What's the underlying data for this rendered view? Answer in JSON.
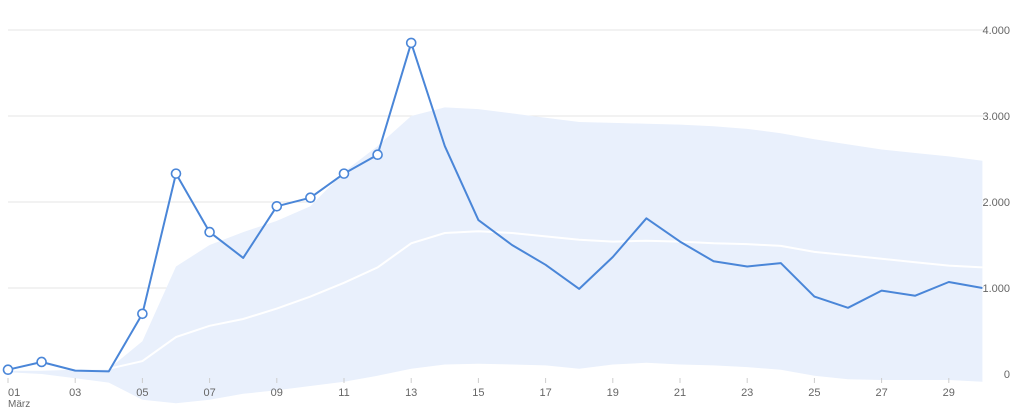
{
  "chart_data": {
    "type": "line",
    "x": [
      "01",
      "02",
      "03",
      "04",
      "05",
      "06",
      "07",
      "08",
      "09",
      "10",
      "11",
      "12",
      "13",
      "14",
      "15",
      "16",
      "17",
      "18",
      "19",
      "20",
      "21",
      "22",
      "23",
      "24",
      "25",
      "26",
      "27",
      "28",
      "29",
      "30"
    ],
    "x_tick_labels": [
      "01",
      "03",
      "05",
      "07",
      "09",
      "11",
      "13",
      "15",
      "17",
      "19",
      "21",
      "23",
      "25",
      "27",
      "29"
    ],
    "x_sublabel": "März",
    "y_tick_labels": [
      "0",
      "1.000",
      "2.000",
      "3.000",
      "4.000"
    ],
    "y_ticks": [
      0,
      1000,
      2000,
      3000,
      4000
    ],
    "ylim": [
      0,
      4000
    ],
    "grid": true,
    "y_axis_side": "right",
    "series": [
      {
        "values": [
          50,
          140,
          40,
          30,
          700,
          2330,
          1650,
          1350,
          1950,
          2050,
          2330,
          2550,
          3850,
          2650,
          1790,
          1500,
          1270,
          990,
          1360,
          1810,
          1540,
          1310,
          1250,
          1290,
          900,
          770,
          970,
          910,
          1070,
          1000
        ],
        "markers_on": [
          "01",
          "02",
          "05",
          "06",
          "07",
          "09",
          "10",
          "11",
          "12",
          "13"
        ]
      }
    ],
    "expected_line": [
      50,
      50,
      60,
      60,
      150,
      430,
      560,
      640,
      760,
      900,
      1060,
      1240,
      1520,
      1640,
      1660,
      1640,
      1600,
      1560,
      1540,
      1550,
      1540,
      1520,
      1510,
      1490,
      1420,
      1380,
      1340,
      1300,
      1260,
      1240
    ],
    "band_upper": [
      50,
      50,
      60,
      60,
      380,
      1250,
      1500,
      1650,
      1780,
      1950,
      2350,
      2650,
      3000,
      3100,
      3080,
      3030,
      2980,
      2930,
      2920,
      2910,
      2900,
      2880,
      2850,
      2800,
      2730,
      2670,
      2610,
      2570,
      2530,
      2480
    ],
    "band_lower": [
      20,
      0,
      -50,
      -100,
      -300,
      -340,
      -300,
      -230,
      -190,
      -140,
      -90,
      -20,
      60,
      110,
      120,
      110,
      100,
      60,
      110,
      130,
      110,
      100,
      80,
      50,
      -20,
      -60,
      -70,
      -70,
      -70,
      -90
    ],
    "colors": {
      "line": "#4a86d8",
      "band": "#e9f0fc",
      "expected": "#ffffff",
      "grid": "#e6e6e6",
      "marker_fill": "#ffffff",
      "text": "#666666"
    }
  }
}
